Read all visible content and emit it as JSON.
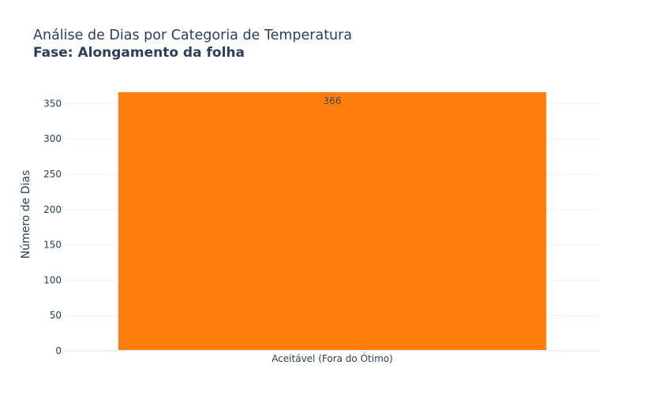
{
  "chart_data": {
    "type": "bar",
    "title": "Análise de Dias por Categoria de Temperatura",
    "subtitle": "Fase: Alongamento da folha",
    "xlabel": "",
    "ylabel": "Número de Dias",
    "categories": [
      "Aceitável (Fora do Ótimo)"
    ],
    "values": [
      366
    ],
    "data_labels": [
      "366"
    ],
    "ylim": [
      0,
      366
    ],
    "yticks": [
      0,
      50,
      100,
      150,
      200,
      250,
      300,
      350
    ],
    "grid": true,
    "legend": "none",
    "bar_color": "#ff7f0e",
    "text_color": "#2a3f5f",
    "grid_color": "#ebf0f8"
  }
}
